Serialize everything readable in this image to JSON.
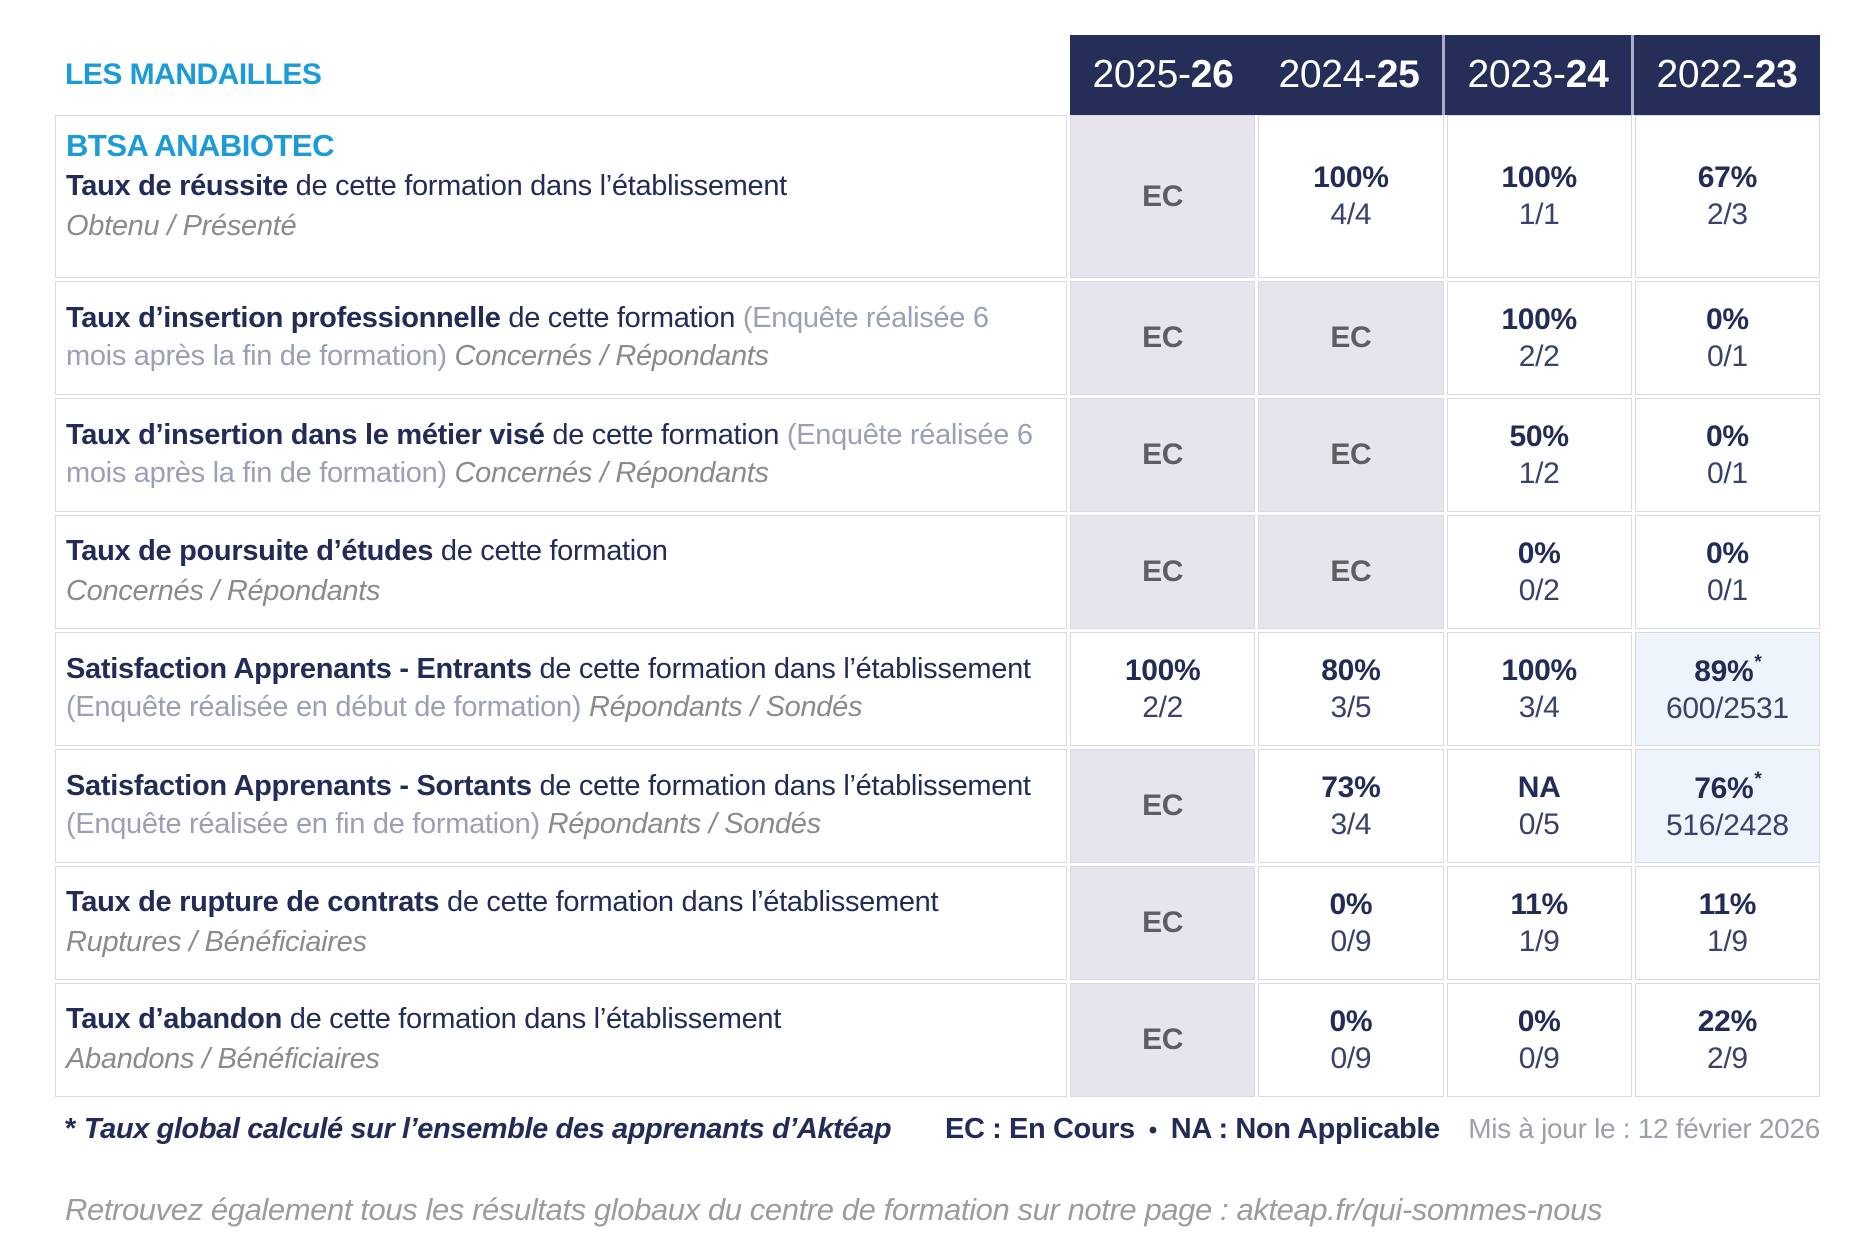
{
  "page": {
    "site_name": "LES MANDAILLES",
    "program": "BTSA ANABIOTEC"
  },
  "colors": {
    "brand_cyan": "#1b9bd7",
    "header_navy": "#252e58",
    "text_navy": "#232c56",
    "ec_cell_bg": "#e6e5ee",
    "highlight_cell_bg": "#edf4fb",
    "ec_text": "#5d5d62",
    "paren_gray": "#9aa0b6",
    "legend_gray": "#8b8b8b",
    "border_gray": "#d9d9e3"
  },
  "table": {
    "years": [
      {
        "prefix": "2025-",
        "suffix": "26"
      },
      {
        "prefix": "2024-",
        "suffix": "25"
      },
      {
        "prefix": "2023-",
        "suffix": "24"
      },
      {
        "prefix": "2022-",
        "suffix": "23"
      }
    ],
    "rows": [
      {
        "heading": "BTSA ANABIOTEC",
        "title": "Taux de réussite",
        "desc": " de cette formation dans l’établissement",
        "legend": "Obtenu / Présenté",
        "cells": [
          {
            "kind": "ec",
            "text": "EC"
          },
          {
            "kind": "value",
            "pct": "100%",
            "frac": "4/4"
          },
          {
            "kind": "value",
            "pct": "100%",
            "frac": "1/1"
          },
          {
            "kind": "value",
            "pct": "67%",
            "frac": "2/3"
          }
        ]
      },
      {
        "title": "Taux d’insertion professionnelle",
        "desc": " de cette formation ",
        "paren": "(Enquête réalisée 6 mois après la fin de formation) ",
        "legend": "Concernés / Répondants",
        "cells": [
          {
            "kind": "ec",
            "text": "EC"
          },
          {
            "kind": "ec",
            "text": "EC"
          },
          {
            "kind": "value",
            "pct": "100%",
            "frac": "2/2"
          },
          {
            "kind": "value",
            "pct": "0%",
            "frac": "0/1"
          }
        ]
      },
      {
        "title": "Taux d’insertion dans le métier visé",
        "desc": " de cette formation ",
        "paren": "(Enquête réalisée 6 mois après la fin de formation) ",
        "legend": "Concernés / Répondants",
        "cells": [
          {
            "kind": "ec",
            "text": "EC"
          },
          {
            "kind": "ec",
            "text": "EC"
          },
          {
            "kind": "value",
            "pct": "50%",
            "frac": "1/2"
          },
          {
            "kind": "value",
            "pct": "0%",
            "frac": "0/1"
          }
        ]
      },
      {
        "title": "Taux de poursuite d’études",
        "desc": " de cette formation",
        "legend": "Concernés / Répondants",
        "cells": [
          {
            "kind": "ec",
            "text": "EC"
          },
          {
            "kind": "ec",
            "text": "EC"
          },
          {
            "kind": "value",
            "pct": "0%",
            "frac": "0/2"
          },
          {
            "kind": "value",
            "pct": "0%",
            "frac": "0/1"
          }
        ]
      },
      {
        "title": "Satisfaction Apprenants - Entrants",
        "desc": " de cette formation dans l’établissement ",
        "paren": "(Enquête réalisée en début de formation) ",
        "legend": "Répondants / Sondés",
        "cells": [
          {
            "kind": "value",
            "pct": "100%",
            "frac": "2/2"
          },
          {
            "kind": "value",
            "pct": "80%",
            "frac": "3/5"
          },
          {
            "kind": "value",
            "pct": "100%",
            "frac": "3/4"
          },
          {
            "kind": "value",
            "pct": "89%",
            "star": "*",
            "frac": "600/2531"
          }
        ]
      },
      {
        "title": "Satisfaction Apprenants - Sortants",
        "desc": " de cette formation dans l’établissement ",
        "paren": "(Enquête réalisée en fin de formation) ",
        "legend": "Répondants / Sondés",
        "cells": [
          {
            "kind": "ec",
            "text": "EC"
          },
          {
            "kind": "value",
            "pct": "73%",
            "frac": "3/4"
          },
          {
            "kind": "value",
            "pct": "NA",
            "frac": "0/5"
          },
          {
            "kind": "value",
            "pct": "76%",
            "star": "*",
            "frac": "516/2428"
          }
        ]
      },
      {
        "title": "Taux de rupture de contrats",
        "desc": " de cette formation dans l’établissement",
        "legend": "Ruptures / Bénéficiaires",
        "cells": [
          {
            "kind": "ec",
            "text": "EC"
          },
          {
            "kind": "value",
            "pct": "0%",
            "frac": "0/9"
          },
          {
            "kind": "value",
            "pct": "11%",
            "frac": "1/9"
          },
          {
            "kind": "value",
            "pct": "11%",
            "frac": "1/9"
          }
        ]
      },
      {
        "title": "Taux d’abandon",
        "desc": " de cette formation dans l’établissement",
        "legend": "Abandons / Bénéficiaires",
        "cells": [
          {
            "kind": "ec",
            "text": "EC"
          },
          {
            "kind": "value",
            "pct": "0%",
            "frac": "0/9"
          },
          {
            "kind": "value",
            "pct": "0%",
            "frac": "0/9"
          },
          {
            "kind": "value",
            "pct": "22%",
            "frac": "2/9"
          }
        ]
      }
    ]
  },
  "footer": {
    "star": "*",
    "note": "Taux global calculé sur l’ensemble des apprenants d’Aktéap",
    "ec_legend": "EC : En Cours",
    "separator": "•",
    "na_legend": "NA : Non Applicable",
    "updated": "Mis à jour le : 12 février 2026"
  },
  "bottom_note": "Retrouvez également tous les résultats globaux du centre de formation sur notre page : akteap.fr/qui-sommes-nous"
}
